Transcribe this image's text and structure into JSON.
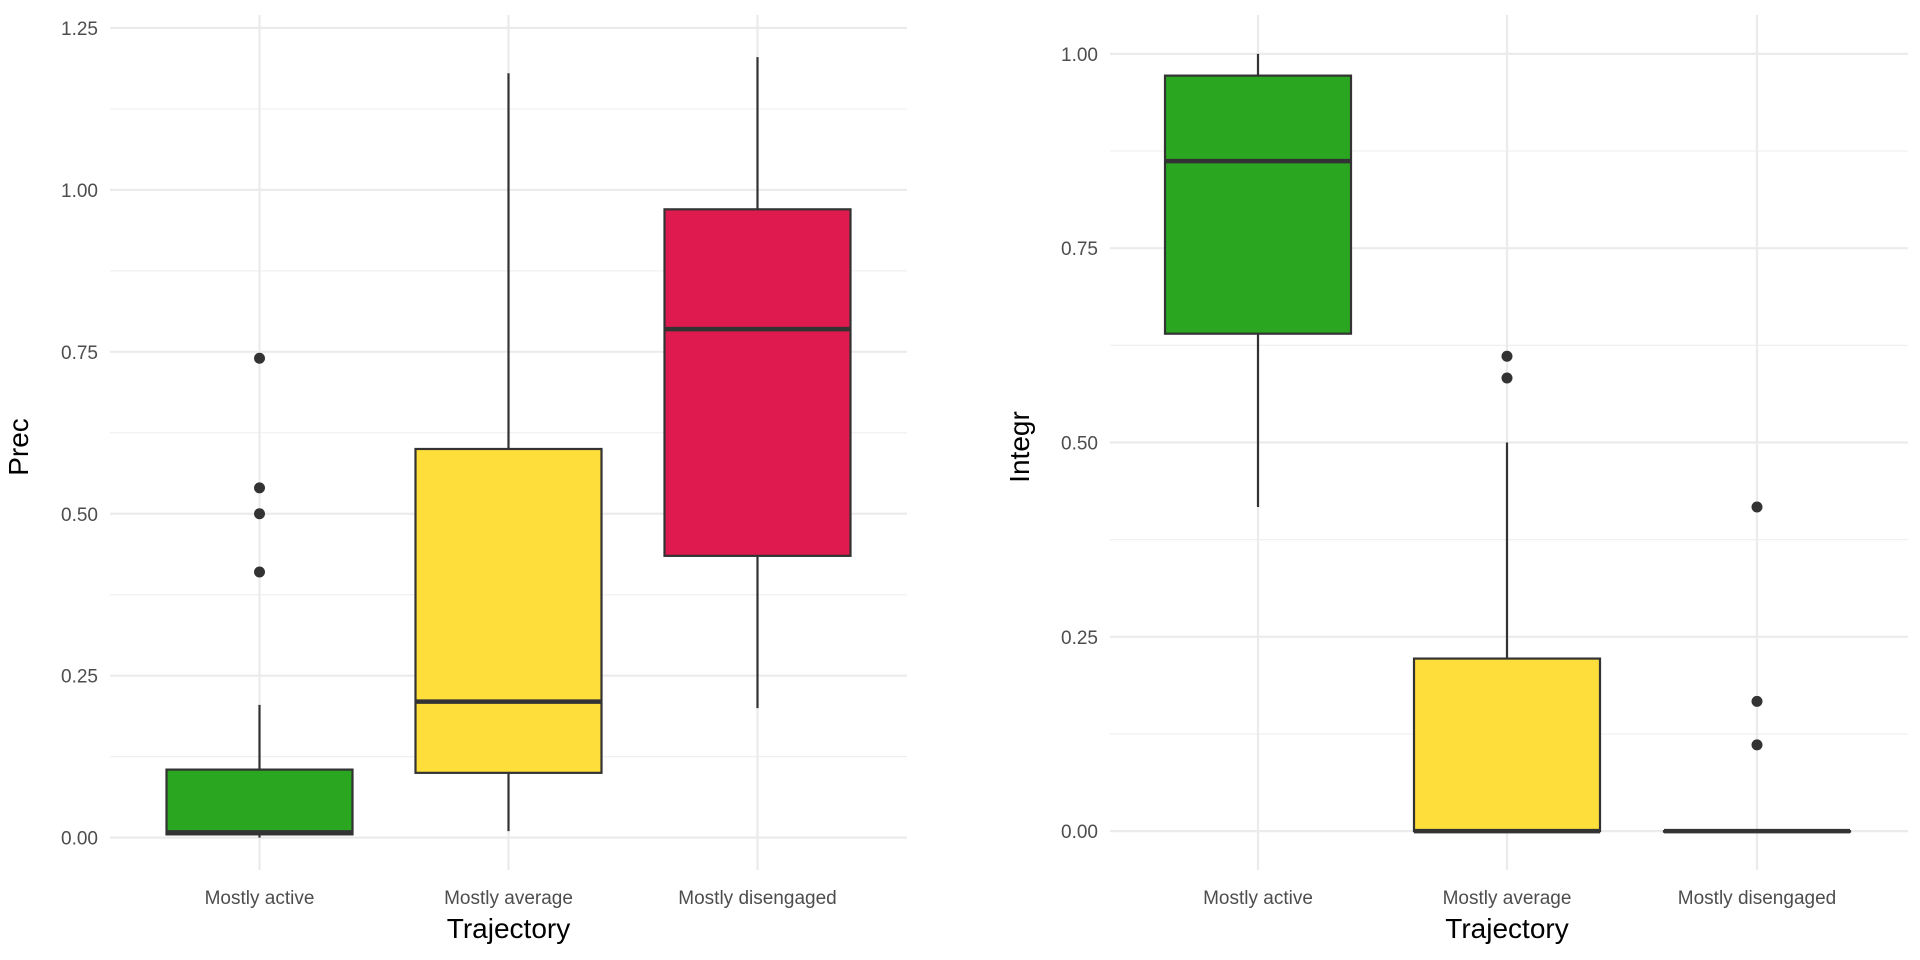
{
  "chart_data": [
    {
      "type": "box",
      "xlabel": "Trajectory",
      "ylabel": "Prec",
      "categories": [
        "Mostly active",
        "Mostly average",
        "Mostly disengaged"
      ],
      "colors": [
        "#2aa620",
        "#fede3b",
        "#df1a4f"
      ],
      "ylim": [
        -0.05,
        1.27
      ],
      "yticks": [
        0.0,
        0.25,
        0.5,
        0.75,
        1.0,
        1.25
      ],
      "ytick_labels": [
        "0.00",
        "0.25",
        "0.50",
        "0.75",
        "1.00",
        "1.25"
      ],
      "grid": true,
      "boxes": [
        {
          "category": "Mostly active",
          "whisker_low": 0.0,
          "q1": 0.005,
          "median": 0.008,
          "q3": 0.105,
          "whisker_high": 0.205,
          "outliers": [
            0.74,
            0.54,
            0.5,
            0.41
          ]
        },
        {
          "category": "Mostly average",
          "whisker_low": 0.01,
          "q1": 0.1,
          "median": 0.21,
          "q3": 0.6,
          "whisker_high": 1.18,
          "outliers": []
        },
        {
          "category": "Mostly disengaged",
          "whisker_low": 0.2,
          "q1": 0.435,
          "median": 0.785,
          "q3": 0.97,
          "whisker_high": 1.205,
          "outliers": []
        }
      ]
    },
    {
      "type": "box",
      "xlabel": "Trajectory",
      "ylabel": "Integr",
      "categories": [
        "Mostly active",
        "Mostly average",
        "Mostly disengaged"
      ],
      "colors": [
        "#2aa620",
        "#fede3b",
        "#df1a4f"
      ],
      "ylim": [
        -0.05,
        1.05
      ],
      "yticks": [
        0.0,
        0.25,
        0.5,
        0.75,
        1.0
      ],
      "ytick_labels": [
        "0.00",
        "0.25",
        "0.50",
        "0.75",
        "1.00"
      ],
      "grid": true,
      "boxes": [
        {
          "category": "Mostly active",
          "whisker_low": 0.417,
          "q1": 0.64,
          "median": 0.862,
          "q3": 0.972,
          "whisker_high": 1.0,
          "outliers": []
        },
        {
          "category": "Mostly average",
          "whisker_low": 0.0,
          "q1": 0.0,
          "median": 0.0,
          "q3": 0.222,
          "whisker_high": 0.5,
          "outliers": [
            0.611,
            0.583
          ]
        },
        {
          "category": "Mostly disengaged",
          "whisker_low": 0.0,
          "q1": 0.0,
          "median": 0.0,
          "q3": 0.0,
          "whisker_high": 0.0,
          "outliers": [
            0.417,
            0.167,
            0.111
          ]
        }
      ]
    }
  ]
}
